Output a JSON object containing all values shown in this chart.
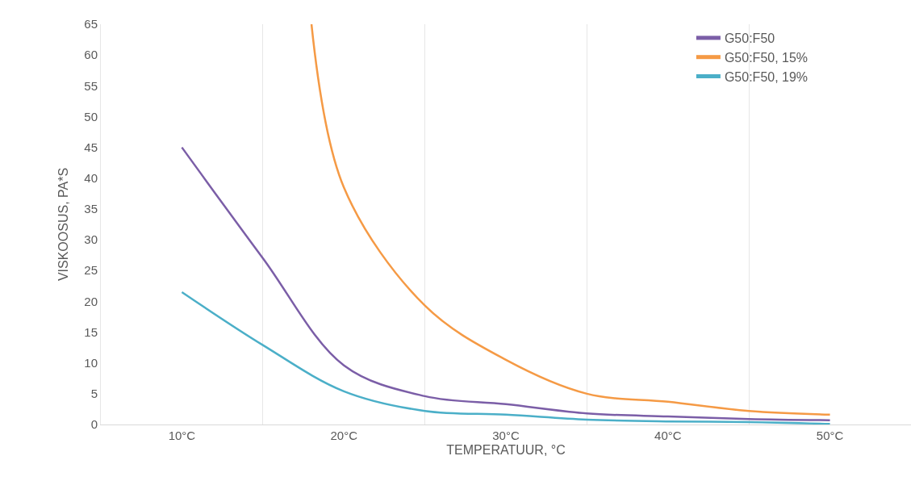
{
  "chart_data": {
    "type": "line",
    "xlabel": "TEMPERATUUR, °C",
    "ylabel": "VISKOOSUS, PA*S",
    "xlim": [
      5,
      55
    ],
    "xticks": [
      {
        "value": 10,
        "label": "10°C"
      },
      {
        "value": 15,
        "label": null
      },
      {
        "value": 20,
        "label": "20°C"
      },
      {
        "value": 25,
        "label": null
      },
      {
        "value": 30,
        "label": "30°C"
      },
      {
        "value": 35,
        "label": null
      },
      {
        "value": 40,
        "label": "40°C"
      },
      {
        "value": 45,
        "label": null
      },
      {
        "value": 50,
        "label": "50°C"
      }
    ],
    "ylim": [
      0,
      65
    ],
    "yticks": [
      0,
      5,
      10,
      15,
      20,
      25,
      30,
      35,
      40,
      45,
      50,
      55,
      60,
      65
    ],
    "grid": "x",
    "legend": "top right",
    "line_style": "solid",
    "marker": "none",
    "series": [
      {
        "name": "G50:F50",
        "color": "#7b5ea7",
        "x": [
          10,
          15,
          20,
          25,
          30,
          35,
          40,
          45,
          50
        ],
        "values": [
          45,
          27,
          9.6,
          4.6,
          3.3,
          1.8,
          1.3,
          0.9,
          0.7
        ]
      },
      {
        "name": "G50:F50, 15%",
        "color": "#f59a45",
        "x": [
          18,
          20,
          25,
          30,
          35,
          40,
          45,
          50
        ],
        "values": [
          65,
          38.5,
          19.3,
          10.5,
          5,
          3.7,
          2.2,
          1.6
        ]
      },
      {
        "name": "G50:F50, 19%",
        "color": "#4bafc8",
        "x": [
          10,
          15,
          20,
          25,
          30,
          35,
          40,
          45,
          50
        ],
        "values": [
          21.5,
          12.9,
          5.4,
          2.2,
          1.6,
          0.8,
          0.5,
          0.4,
          0.1
        ]
      }
    ]
  }
}
